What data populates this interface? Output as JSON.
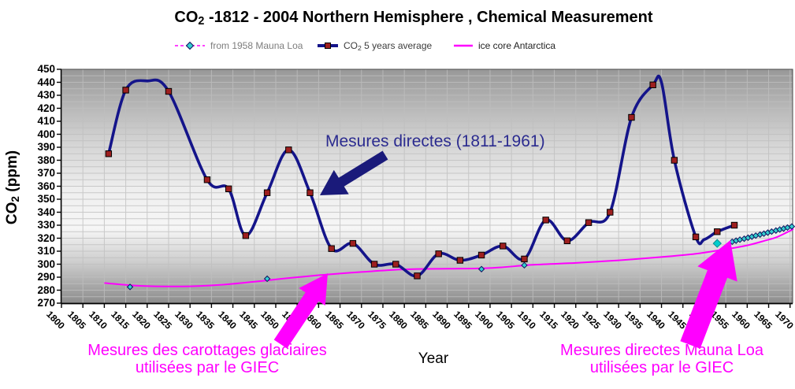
{
  "title": {
    "prefix": "CO",
    "sub": "2",
    "rest": " -1812 - 2004 Northern Hemisphere , Chemical Measurement"
  },
  "legend": {
    "mauna_loa": {
      "label": "from 1958 Mauna Loa"
    },
    "co2_avg": {
      "prefix": "CO",
      "sub": "2",
      "rest": " 5 years average"
    },
    "ice_core": {
      "label": "ice core Antarctica"
    }
  },
  "axes": {
    "y_label": {
      "prefix": "CO",
      "sub": "2",
      "rest": " (ppm)"
    },
    "x_label": "Year",
    "y_ticks": [
      450,
      440,
      430,
      420,
      410,
      400,
      390,
      380,
      370,
      360,
      350,
      340,
      330,
      320,
      310,
      300,
      290,
      280,
      270
    ],
    "x_ticks": [
      1800,
      1805,
      1810,
      1815,
      1820,
      1825,
      1830,
      1835,
      1840,
      1845,
      1850,
      1855,
      1860,
      1865,
      1870,
      1875,
      1880,
      1885,
      1890,
      1895,
      1900,
      1905,
      1910,
      1915,
      1920,
      1925,
      1930,
      1935,
      1940,
      1945,
      1950,
      1955,
      1960,
      1965,
      1970
    ]
  },
  "annotations": {
    "direct": "Mesures directes (1811-1961)",
    "ice_line1": "Mesures des carottages glaciaires",
    "ice_line2": "utilisées par le GIEC",
    "mauna_line1": "Mesures directes Mauna Loa",
    "mauna_line2": "utilisées par le GIEC"
  },
  "colors": {
    "co2_line": "#14148a",
    "co2_marker": "#9e1f1f",
    "magenta": "#ff00ff",
    "diamond_fill": "#35cfcf",
    "annotation_navy": "#2b2b8f",
    "grid": "#bfbfbf"
  },
  "chart_data": {
    "type": "line",
    "title": "CO2 -1812 - 2004 Northern Hemisphere , Chemical Measurement",
    "xlabel": "Year",
    "ylabel": "CO2 (ppm)",
    "xlim": [
      1800,
      1970.6
    ],
    "ylim": [
      270,
      450
    ],
    "x_tick_step": 5,
    "y_tick_step": 10,
    "grid": true,
    "legend_position": "top",
    "series": [
      {
        "name": "CO2 5 years average",
        "style": "smooth-line",
        "marker": "square",
        "points": [
          [
            1811,
            385,
            1
          ],
          [
            1815,
            434,
            1
          ],
          [
            1820,
            441,
            0
          ],
          [
            1825,
            433,
            1
          ],
          [
            1834,
            365,
            1
          ],
          [
            1839,
            358,
            1
          ],
          [
            1843,
            322,
            1
          ],
          [
            1848,
            355,
            1
          ],
          [
            1853,
            388,
            1
          ],
          [
            1858,
            355,
            1
          ],
          [
            1863,
            312,
            1
          ],
          [
            1868,
            316,
            1
          ],
          [
            1873,
            300,
            1
          ],
          [
            1878,
            300,
            1
          ],
          [
            1883,
            291,
            1
          ],
          [
            1888,
            308,
            1
          ],
          [
            1893,
            303,
            1
          ],
          [
            1898,
            307,
            1
          ],
          [
            1903,
            314,
            1
          ],
          [
            1908,
            304,
            1
          ],
          [
            1913,
            334,
            1
          ],
          [
            1918,
            318,
            1
          ],
          [
            1923,
            332,
            1
          ],
          [
            1928,
            340,
            1
          ],
          [
            1933,
            413,
            1
          ],
          [
            1938,
            438,
            1
          ],
          [
            1940,
            440,
            0
          ],
          [
            1943,
            380,
            1
          ],
          [
            1948,
            321,
            1
          ],
          [
            1950,
            319,
            0
          ],
          [
            1953,
            325,
            1
          ],
          [
            1957,
            330,
            1
          ]
        ]
      },
      {
        "name": "ice core Antarctica",
        "style": "smooth-line",
        "points": [
          [
            1810,
            285.5
          ],
          [
            1816,
            283.8
          ],
          [
            1822,
            283
          ],
          [
            1830,
            283
          ],
          [
            1838,
            284.3
          ],
          [
            1845,
            286.5
          ],
          [
            1852,
            289
          ],
          [
            1860,
            291.5
          ],
          [
            1870,
            294
          ],
          [
            1880,
            296
          ],
          [
            1890,
            296.5
          ],
          [
            1900,
            297
          ],
          [
            1910,
            299.5
          ],
          [
            1920,
            301
          ],
          [
            1930,
            303
          ],
          [
            1940,
            305.5
          ],
          [
            1948,
            308
          ],
          [
            1955,
            311.5
          ],
          [
            1960,
            314.5
          ],
          [
            1964,
            318
          ],
          [
            1967,
            321
          ],
          [
            1970.8,
            327
          ]
        ],
        "marker_points": [
          [
            1816,
            282.5
          ],
          [
            1848,
            288.8
          ],
          [
            1898,
            296.2
          ],
          [
            1908,
            299.2
          ]
        ]
      },
      {
        "name": "from 1958 Mauna Loa",
        "style": "dashed-line",
        "marker": "diamond",
        "lone_point": [
          1953,
          316
        ],
        "points": [
          [
            1956.5,
            317.3
          ],
          [
            1957.4,
            318.1
          ],
          [
            1958.3,
            318.9
          ],
          [
            1959.3,
            319.6
          ],
          [
            1960.2,
            320.4
          ],
          [
            1961.1,
            321.2
          ],
          [
            1962.0,
            322.0
          ],
          [
            1963.0,
            322.8
          ],
          [
            1963.9,
            323.5
          ],
          [
            1964.8,
            324.3
          ],
          [
            1965.7,
            325.1
          ],
          [
            1966.7,
            325.9
          ],
          [
            1967.6,
            326.7
          ],
          [
            1968.5,
            327.4
          ],
          [
            1969.4,
            328.2
          ],
          [
            1970.4,
            329.0
          ]
        ]
      }
    ]
  }
}
